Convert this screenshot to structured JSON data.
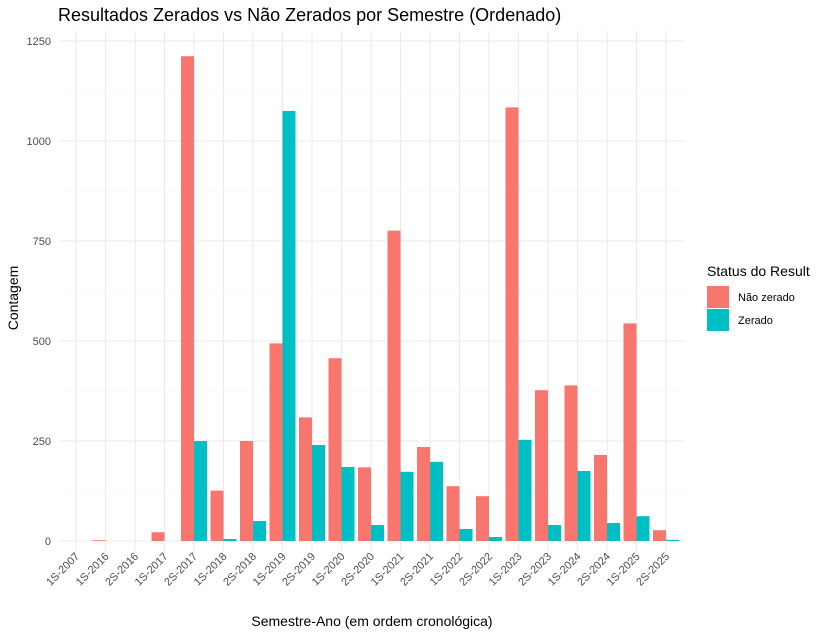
{
  "chart_data": {
    "type": "bar",
    "title": "Resultados Zerados vs Não Zerados por Semestre (Ordenado)",
    "xlabel": "Semestre-Ano (em ordem cronológica)",
    "ylabel": "Contagem",
    "categories": [
      "1S-2007",
      "1S-2016",
      "2S-2016",
      "1S-2017",
      "2S-2017",
      "1S-2018",
      "2S-2018",
      "1S-2019",
      "2S-2019",
      "1S-2020",
      "2S-2020",
      "1S-2021",
      "2S-2021",
      "1S-2022",
      "2S-2022",
      "1S-2023",
      "2S-2023",
      "1S-2024",
      "2S-2024",
      "1S-2025",
      "2S-2025"
    ],
    "series": [
      {
        "name": "Não zerado",
        "color": "#F8766D",
        "values": [
          0,
          2,
          0,
          22,
          1212,
          126,
          250,
          494,
          309,
          457,
          184,
          776,
          235,
          137,
          112,
          1084,
          377,
          389,
          215,
          544,
          27
        ]
      },
      {
        "name": "Zerado",
        "color": "#00BFC4",
        "values": [
          0,
          0,
          0,
          0,
          250,
          5,
          50,
          1075,
          240,
          185,
          40,
          173,
          198,
          30,
          10,
          253,
          40,
          175,
          45,
          62,
          3
        ]
      }
    ],
    "y_ticks": [
      0,
      250,
      500,
      750,
      1000,
      1250
    ],
    "y_tick_labels": [
      "0",
      "250",
      "500",
      "750",
      "1000",
      "1250"
    ],
    "ylim": [
      0,
      1250
    ],
    "legend": {
      "title": "Status do Result",
      "position": "right"
    },
    "grid": true
  }
}
